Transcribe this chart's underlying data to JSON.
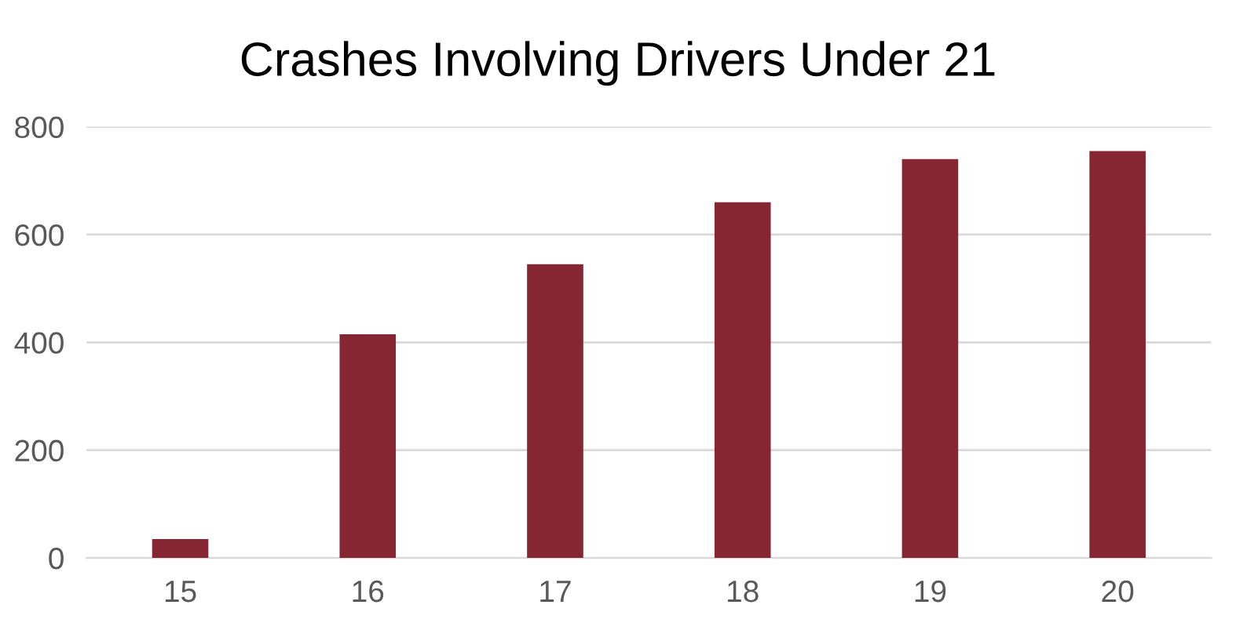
{
  "chart_data": {
    "type": "bar",
    "title": "Crashes Involving Drivers Under 21",
    "categories": [
      "15",
      "16",
      "17",
      "18",
      "19",
      "20"
    ],
    "values": [
      35,
      415,
      545,
      660,
      740,
      755
    ],
    "color": "#862633",
    "ylim": [
      0,
      800
    ],
    "yticks": [
      0,
      200,
      400,
      600,
      800
    ],
    "grid": "y",
    "legend": false
  }
}
